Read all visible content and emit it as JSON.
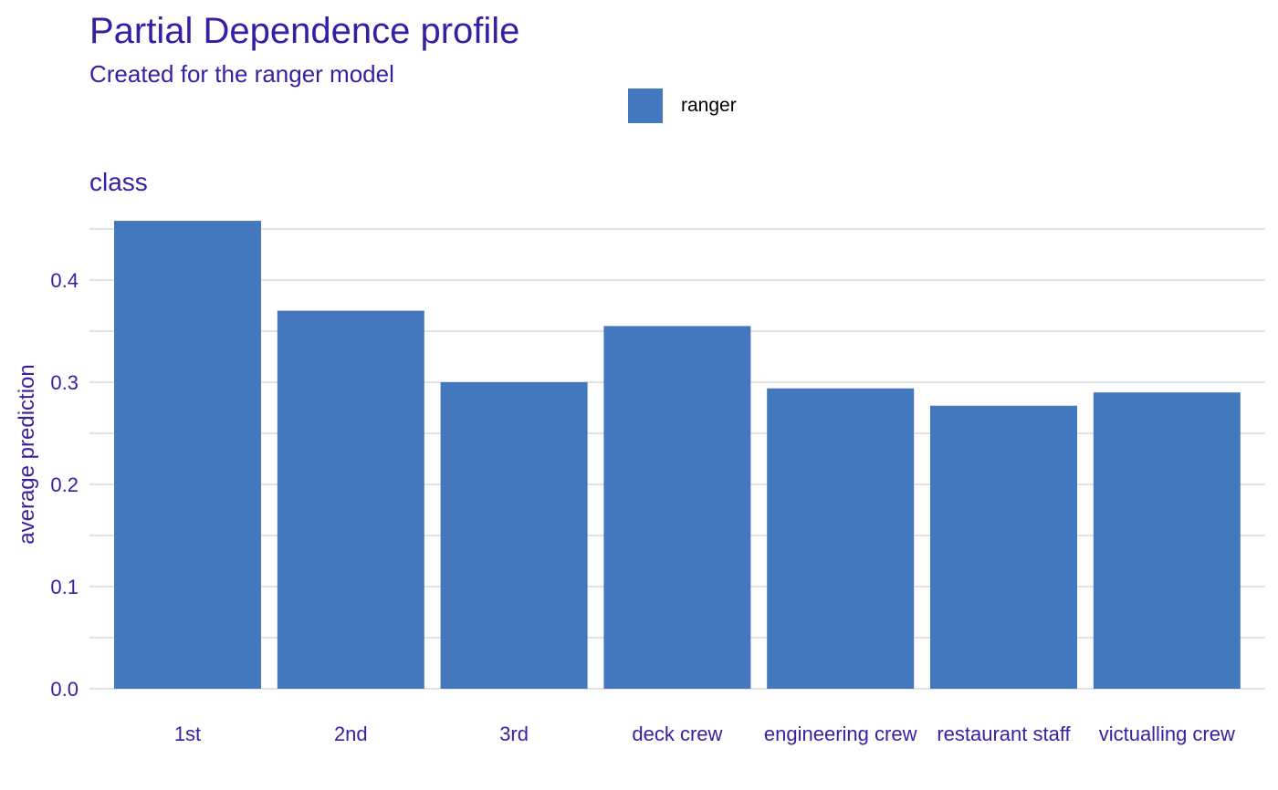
{
  "colors": {
    "accent": "#371ea3",
    "bar": "#4378bf",
    "grid": "#e3e3e3"
  },
  "chart_data": {
    "type": "bar",
    "title": "Partial Dependence profile",
    "subtitle": "Created for the ranger model",
    "panel_title": "class",
    "xlabel": "",
    "ylabel": "average prediction",
    "categories": [
      "1st",
      "2nd",
      "3rd",
      "deck crew",
      "engineering crew",
      "restaurant staff",
      "victualling crew"
    ],
    "series": [
      {
        "name": "ranger",
        "values": [
          0.458,
          0.37,
          0.3,
          0.355,
          0.294,
          0.277,
          0.29
        ]
      }
    ],
    "ylim": [
      0,
      0.45
    ],
    "yticks": [
      "0.0",
      "0.1",
      "0.2",
      "0.3",
      "0.4"
    ],
    "grid": true,
    "legend_position": "top"
  }
}
